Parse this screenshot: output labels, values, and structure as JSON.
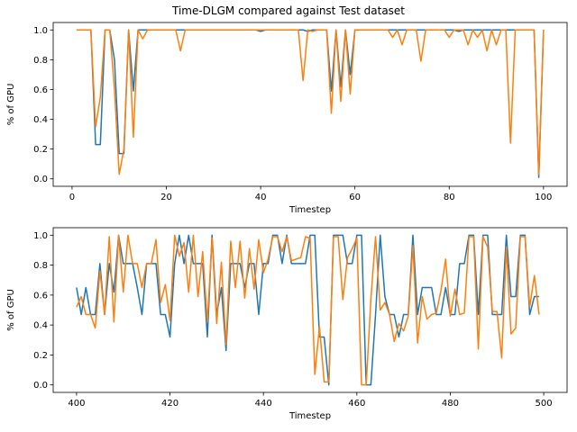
{
  "title": "Time-DLGM compared against Test dataset",
  "colors": {
    "series1": "#1f77b4",
    "series2": "#ff7f0e"
  },
  "chart_data": [
    {
      "type": "line",
      "xlabel": "Timestep",
      "ylabel": "% of GPU",
      "xlim": [
        -4,
        105
      ],
      "ylim": [
        -0.05,
        1.05
      ],
      "xticks": [
        0,
        20,
        40,
        60,
        80,
        100
      ],
      "yticks": [
        0.0,
        0.2,
        0.4,
        0.6,
        0.8,
        1.0
      ],
      "grid": false,
      "x": [
        1,
        2,
        3,
        4,
        5,
        6,
        7,
        8,
        9,
        10,
        11,
        12,
        13,
        14,
        15,
        16,
        17,
        18,
        19,
        20,
        21,
        22,
        23,
        24,
        25,
        26,
        27,
        28,
        29,
        30,
        31,
        32,
        33,
        34,
        35,
        36,
        37,
        38,
        39,
        40,
        41,
        42,
        43,
        44,
        45,
        46,
        47,
        48,
        49,
        50,
        51,
        52,
        53,
        54,
        55,
        56,
        57,
        58,
        59,
        60,
        61,
        62,
        63,
        64,
        65,
        66,
        67,
        68,
        69,
        70,
        71,
        72,
        73,
        74,
        75,
        76,
        77,
        78,
        79,
        80,
        81,
        82,
        83,
        84,
        85,
        86,
        87,
        88,
        89,
        90,
        91,
        92,
        93,
        94,
        95,
        96,
        97,
        98,
        99,
        100
      ],
      "series": [
        {
          "values": [
            1,
            1,
            1,
            1,
            0.23,
            0.23,
            1,
            1,
            0.8,
            0.17,
            0.17,
            1,
            0.59,
            1,
            1,
            1,
            1,
            1,
            1,
            1,
            1,
            1,
            1,
            1,
            1,
            1,
            1,
            1,
            1,
            1,
            1,
            1,
            1,
            1,
            1,
            1,
            1,
            1,
            1,
            0.99,
            1,
            1,
            1,
            1,
            1,
            1,
            1,
            1,
            1,
            0.99,
            1,
            1,
            1,
            1,
            0.59,
            1,
            0.62,
            1,
            0.7,
            1,
            1,
            1,
            1,
            1,
            1,
            1,
            1,
            1,
            1,
            1,
            1,
            1,
            1,
            1,
            1,
            1,
            1,
            1,
            1,
            1,
            1,
            0.99,
            1,
            1,
            1,
            1,
            1,
            1,
            1,
            1,
            1,
            1,
            1,
            1,
            1,
            1,
            1,
            1,
            0.01,
            1
          ]
        },
        {
          "values": [
            1,
            1,
            1,
            1,
            0.35,
            0.55,
            1,
            1,
            0.6,
            0.03,
            0.2,
            1,
            0.28,
            1,
            0.94,
            1,
            1,
            1,
            1,
            1,
            1,
            1,
            0.86,
            1,
            1,
            1,
            1,
            1,
            1,
            1,
            1,
            1,
            1,
            1,
            1,
            1,
            1,
            1,
            1,
            1,
            1,
            1,
            1,
            1,
            1,
            1,
            1,
            1,
            0.66,
            1,
            0.99,
            1,
            1,
            1,
            0.44,
            1,
            0.52,
            1,
            0.57,
            1,
            1,
            1,
            1,
            1,
            1,
            1,
            1,
            0.95,
            1,
            0.9,
            1,
            1,
            1,
            0.79,
            1,
            1,
            1,
            1,
            1,
            0.95,
            1,
            1,
            1,
            0.9,
            1,
            0.95,
            1,
            0.86,
            1,
            0.9,
            1,
            1,
            0.24,
            1,
            1,
            1,
            1,
            1,
            0.03,
            1
          ]
        }
      ]
    },
    {
      "type": "line",
      "xlabel": "Timestep",
      "ylabel": "% of GPU",
      "xlim": [
        395,
        505
      ],
      "ylim": [
        -0.05,
        1.05
      ],
      "xticks": [
        400,
        420,
        440,
        460,
        480,
        500
      ],
      "yticks": [
        0.0,
        0.2,
        0.4,
        0.6,
        0.8,
        1.0
      ],
      "grid": false,
      "x": [
        400,
        401,
        402,
        403,
        404,
        405,
        406,
        407,
        408,
        409,
        410,
        411,
        412,
        413,
        414,
        415,
        416,
        417,
        418,
        419,
        420,
        421,
        422,
        423,
        424,
        425,
        426,
        427,
        428,
        429,
        430,
        431,
        432,
        433,
        434,
        435,
        436,
        437,
        438,
        439,
        440,
        441,
        442,
        443,
        444,
        445,
        446,
        447,
        448,
        449,
        450,
        451,
        452,
        453,
        454,
        455,
        456,
        457,
        458,
        459,
        460,
        461,
        462,
        463,
        464,
        465,
        466,
        467,
        468,
        469,
        470,
        471,
        472,
        473,
        474,
        475,
        476,
        477,
        478,
        479,
        480,
        481,
        482,
        483,
        484,
        485,
        486,
        487,
        488,
        489,
        490,
        491,
        492,
        493,
        494,
        495,
        496,
        497,
        498,
        499
      ],
      "series": [
        {
          "values": [
            0.65,
            0.47,
            0.65,
            0.47,
            0.47,
            0.81,
            0.47,
            0.81,
            0.62,
            1,
            0.81,
            0.81,
            0.81,
            0.65,
            0.47,
            0.81,
            0.81,
            0.81,
            0.47,
            0.47,
            0.32,
            0.81,
            1,
            0.81,
            1,
            0.81,
            0.81,
            0.81,
            0.32,
            1,
            0.47,
            0.65,
            0.23,
            0.81,
            0.81,
            0.81,
            0.65,
            0.81,
            0.81,
            0.47,
            0.81,
            0.81,
            1,
            1,
            0.81,
            1,
            0.81,
            0.81,
            0.81,
            0.81,
            1,
            1,
            0.32,
            0.32,
            0,
            1,
            1,
            1,
            0.81,
            0.81,
            1,
            1,
            0,
            0,
            0.47,
            1,
            0.59,
            0.47,
            0.47,
            0.32,
            0.47,
            0.47,
            1,
            0.47,
            0.65,
            0.65,
            0.65,
            0.47,
            0.47,
            0.65,
            0.47,
            0.47,
            0.81,
            0.81,
            1,
            1,
            0.47,
            1,
            1,
            0.47,
            0.47,
            0.47,
            1,
            0.59,
            0.59,
            1,
            1,
            0.47,
            0.59,
            0.59
          ]
        },
        {
          "values": [
            0.52,
            0.59,
            0.47,
            0.47,
            0.38,
            0.76,
            0.47,
            0.99,
            0.42,
            1,
            0.62,
            1,
            0.81,
            0.81,
            0.65,
            0.81,
            0.81,
            0.97,
            0.55,
            0.67,
            0.43,
            1,
            0.86,
            0.95,
            0.62,
            1,
            0.59,
            0.89,
            0.42,
            0.98,
            0.41,
            0.82,
            0.27,
            0.96,
            0.65,
            0.96,
            0.58,
            0.91,
            0.64,
            0.97,
            0.75,
            0.84,
            0.99,
            0.99,
            0.89,
            0.99,
            0.83,
            0.84,
            0.85,
            0.99,
            0.98,
            0.07,
            0.39,
            0.02,
            0.02,
            0.99,
            0.99,
            0.57,
            0.85,
            0.91,
            0.98,
            0,
            0,
            0.57,
            0.99,
            0.5,
            0.55,
            0.47,
            0.29,
            0.41,
            0.36,
            0.46,
            0.93,
            0.28,
            0.59,
            0.44,
            0.47,
            0.48,
            0.63,
            0.84,
            0.46,
            0.64,
            0.47,
            0.48,
            0.99,
            0.99,
            0.24,
            0.99,
            0.92,
            0.49,
            0.49,
            0.18,
            0.92,
            0.34,
            0.38,
            0.99,
            0.99,
            0.52,
            0.73,
            0.47
          ]
        }
      ]
    }
  ]
}
